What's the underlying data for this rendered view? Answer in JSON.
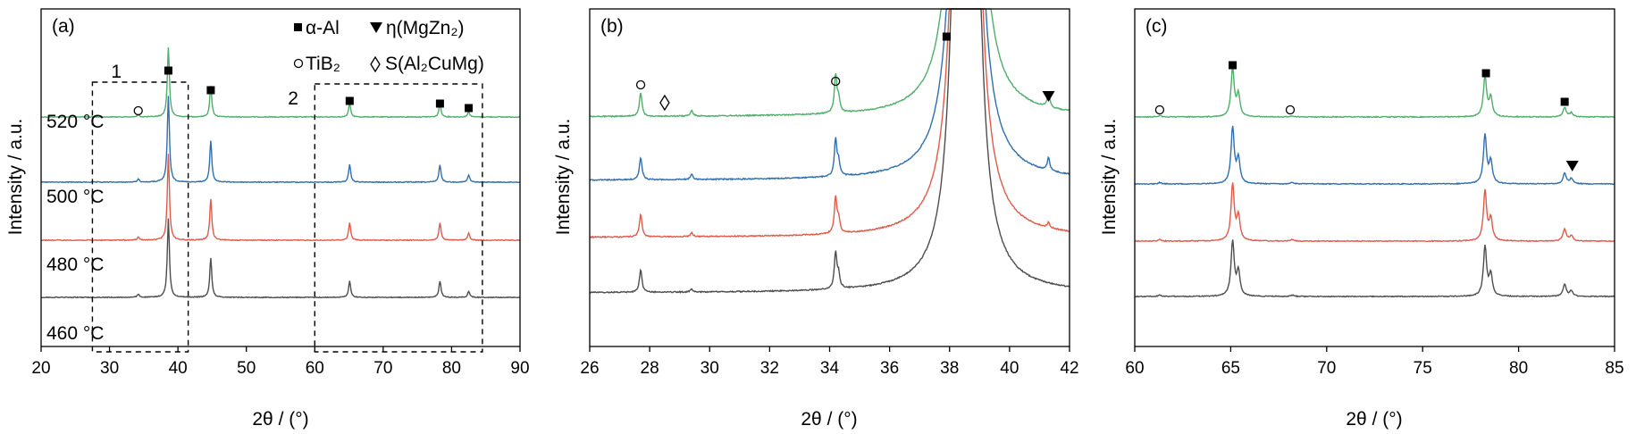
{
  "colors": {
    "460": "#4d4d4d",
    "480": "#e05a4a",
    "500": "#2f6fb0",
    "520": "#4fae6a"
  },
  "legend": {
    "alpha_al": "α-Al",
    "eta": "η(MgZn₂)",
    "tib2": "TiB₂",
    "s_phase": "S(Al₂CuMg)"
  },
  "markers": {
    "alpha_al": "filled-square",
    "eta": "filled-down-triangle",
    "tib2": "open-circle",
    "s_phase": "open-diamond"
  },
  "chart_data": [
    {
      "type": "line",
      "panel_label": "(a)",
      "xlabel": "2θ / (°)",
      "ylabel": "Intensity / a.u.",
      "xlim": [
        20,
        90
      ],
      "xticks": [
        "20",
        "30",
        "40",
        "50",
        "60",
        "70",
        "80",
        "90"
      ],
      "yticks": false,
      "grid": false,
      "series": [
        {
          "name": "520 °C",
          "label": "520 °C",
          "color_key": "520"
        },
        {
          "name": "500 °C",
          "label": "500 °C",
          "color_key": "500"
        },
        {
          "name": "480 °C",
          "label": "480 °C",
          "color_key": "480"
        },
        {
          "name": "460 °C",
          "label": "460 °C",
          "color_key": "460"
        }
      ],
      "peaks": [
        {
          "x": 38.6,
          "h": [
            0.68,
            0.84,
            0.84,
            0.77
          ]
        },
        {
          "x": 44.8,
          "h": [
            0.3,
            0.4,
            0.4,
            0.38
          ]
        },
        {
          "x": 65.1,
          "h": [
            0.13,
            0.17,
            0.17,
            0.16
          ]
        },
        {
          "x": 78.3,
          "h": [
            0.13,
            0.17,
            0.17,
            0.16
          ]
        },
        {
          "x": 82.5,
          "h": [
            0.05,
            0.07,
            0.07,
            0.06
          ]
        },
        {
          "x": 34.2,
          "h": [
            0.02,
            0.03,
            0.03,
            0.03
          ]
        }
      ],
      "boxes": [
        {
          "label": "1",
          "x": [
            27.5,
            41.5
          ]
        },
        {
          "label": "2",
          "x": [
            60,
            84.5
          ]
        }
      ],
      "annotations": [
        {
          "marker": "filled-square",
          "x": 38.6
        },
        {
          "marker": "filled-square",
          "x": 44.8
        },
        {
          "marker": "filled-square",
          "x": 65.1
        },
        {
          "marker": "filled-square",
          "x": 78.3
        },
        {
          "marker": "filled-square",
          "x": 82.5
        },
        {
          "marker": "open-circle",
          "x": 34.2
        }
      ]
    },
    {
      "type": "line",
      "panel_label": "(b)",
      "xlabel": "2θ / (°)",
      "ylabel": "Intensity / a.u.",
      "xlim": [
        26,
        42
      ],
      "xticks": [
        "26",
        "28",
        "30",
        "32",
        "34",
        "36",
        "38",
        "40",
        "42"
      ],
      "yticks": false,
      "grid": false,
      "series": [
        {
          "name": "520 °C",
          "color_key": "520"
        },
        {
          "name": "500 °C",
          "color_key": "500"
        },
        {
          "name": "480 °C",
          "color_key": "480"
        },
        {
          "name": "460 °C",
          "color_key": "460"
        }
      ],
      "peaks": [
        {
          "x": 27.7,
          "h": [
            0.18,
            0.17,
            0.17,
            0.17
          ]
        },
        {
          "x": 29.4,
          "h": [
            0.04,
            0.04,
            0.03,
            0.02
          ]
        },
        {
          "x": 34.2,
          "h": [
            0.28,
            0.27,
            0.27,
            0.27
          ]
        },
        {
          "x": 34.3,
          "h": [
            0.1,
            0.1,
            0.1,
            0.1
          ]
        },
        {
          "x": 41.3,
          "h": [
            0.11,
            0.1,
            0.04,
            0.0
          ]
        }
      ],
      "main_peak_x": 38.55,
      "annotations": [
        {
          "marker": "open-circle",
          "x": 27.7
        },
        {
          "marker": "open-diamond",
          "x": 28.5
        },
        {
          "marker": "open-circle",
          "x": 34.2
        },
        {
          "marker": "filled-square",
          "x": 37.9
        },
        {
          "marker": "filled-down-triangle",
          "x": 41.3
        }
      ]
    },
    {
      "type": "line",
      "panel_label": "(c)",
      "xlabel": "2θ / (°)",
      "ylabel": "Intensity / a.u.",
      "xlim": [
        60,
        85
      ],
      "xticks": [
        "60",
        "65",
        "70",
        "75",
        "80",
        "85"
      ],
      "yticks": false,
      "grid": false,
      "series": [
        {
          "name": "520 °C",
          "color_key": "520"
        },
        {
          "name": "500 °C",
          "color_key": "500"
        },
        {
          "name": "480 °C",
          "color_key": "480"
        },
        {
          "name": "460 °C",
          "color_key": "460"
        }
      ],
      "peaks": [
        {
          "x": 65.1,
          "h": [
            0.36,
            0.42,
            0.42,
            0.41
          ]
        },
        {
          "x": 65.4,
          "h": [
            0.16,
            0.18,
            0.18,
            0.18
          ]
        },
        {
          "x": 78.25,
          "h": [
            0.3,
            0.36,
            0.37,
            0.37
          ]
        },
        {
          "x": 78.55,
          "h": [
            0.14,
            0.16,
            0.16,
            0.16
          ]
        },
        {
          "x": 82.4,
          "h": [
            0.07,
            0.08,
            0.09,
            0.09
          ]
        },
        {
          "x": 82.75,
          "h": [
            0.03,
            0.04,
            0.04,
            0.04
          ]
        },
        {
          "x": 61.3,
          "h": [
            0.01,
            0.01,
            0.01,
            0.01
          ]
        },
        {
          "x": 68.2,
          "h": [
            0.01,
            0.01,
            0.01,
            0.01
          ]
        }
      ],
      "annotations": [
        {
          "marker": "open-circle",
          "x": 61.3
        },
        {
          "marker": "filled-square",
          "x": 65.1
        },
        {
          "marker": "open-circle",
          "x": 68.1
        },
        {
          "marker": "filled-square",
          "x": 78.3
        },
        {
          "marker": "filled-square",
          "x": 82.4
        },
        {
          "marker": "filled-down-triangle",
          "x": 82.8
        }
      ]
    }
  ]
}
